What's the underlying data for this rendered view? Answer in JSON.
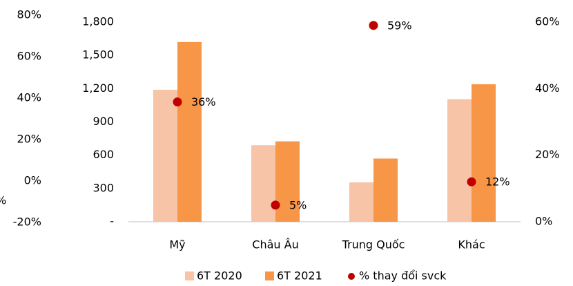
{
  "chart_data": {
    "type": "bar",
    "categories": [
      "Mỹ",
      "Châu Âu",
      "Trung Quốc",
      "Khác"
    ],
    "series": [
      {
        "name": "6T 2020",
        "color": "#f8c4a7",
        "values": [
          1190,
          690,
          355,
          1105
        ]
      },
      {
        "name": "6T 2021",
        "color": "#f79646",
        "values": [
          1620,
          725,
          570,
          1240
        ]
      },
      {
        "name": "% thay đổi svck",
        "color": "#c00000",
        "axis": "y2",
        "type": "scatter",
        "values": [
          36,
          5,
          59,
          12
        ],
        "value_labels": [
          "36%",
          "5%",
          "59%",
          "12%"
        ]
      }
    ],
    "ylim": [
      0,
      1800
    ],
    "yticks": [
      {
        "value": 0,
        "label": "-"
      },
      300,
      600,
      900,
      {
        "value": 1200,
        "label": "1,200"
      },
      {
        "value": 1500,
        "label": "1,500"
      },
      {
        "value": 1800,
        "label": "1,800"
      }
    ],
    "y2lim": [
      0,
      60
    ],
    "y2ticks": [
      {
        "value": 0,
        "label": "0%"
      },
      {
        "value": 20,
        "label": "20%"
      },
      {
        "value": 40,
        "label": "40%"
      },
      {
        "value": 60,
        "label": "60%"
      }
    ],
    "y3label": "%",
    "y3lim": [
      -20,
      80
    ],
    "y3ticks": [
      {
        "value": -20,
        "label": "-20%"
      },
      {
        "value": 0,
        "label": "0%"
      },
      {
        "value": 20,
        "label": "20%"
      },
      {
        "value": 40,
        "label": "40%"
      },
      {
        "value": 60,
        "label": "60%"
      },
      {
        "value": 80,
        "label": "80%"
      }
    ],
    "legend": "bottom"
  }
}
